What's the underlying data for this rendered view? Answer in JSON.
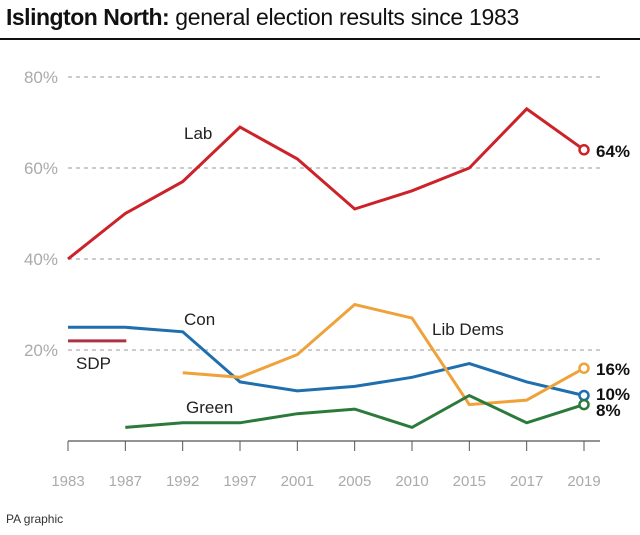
{
  "title": {
    "bold": "Islington North:",
    "rest": " general election results since 1983"
  },
  "source": "PA graphic",
  "chart_data": {
    "type": "line",
    "title": "Islington North: general election results since 1983",
    "x": [
      "1983",
      "1987",
      "1992",
      "1997",
      "2001",
      "2005",
      "2010",
      "2015",
      "2017",
      "2019"
    ],
    "ylim": [
      0,
      80
    ],
    "y_ticks": [
      "80%",
      "60%",
      "40%",
      "20%"
    ],
    "y_tick_values": [
      80,
      60,
      40,
      20
    ],
    "grid": true,
    "series": [
      {
        "name": "Lab",
        "color": "#cc2229",
        "values": [
          40,
          50,
          57,
          69,
          62,
          51,
          55,
          60,
          73,
          64
        ],
        "end_label": "64%"
      },
      {
        "name": "Con",
        "color": "#1f6faf",
        "values": [
          25,
          25,
          24,
          13,
          11,
          12,
          14,
          17,
          13,
          10
        ],
        "end_label": "10%"
      },
      {
        "name": "Lib Dems",
        "color": "#f0a23a",
        "values": [
          null,
          null,
          15,
          14,
          19,
          30,
          27,
          8,
          9,
          16
        ],
        "end_label": "16%"
      },
      {
        "name": "Green",
        "color": "#2b7a3b",
        "values": [
          null,
          3,
          4,
          4,
          6,
          7,
          3,
          10,
          4,
          8
        ],
        "end_label": "8%"
      },
      {
        "name": "SDP",
        "color": "#b03045",
        "values": [
          22,
          22,
          null,
          null,
          null,
          null,
          null,
          null,
          null,
          null
        ],
        "end_label": ""
      }
    ]
  },
  "colors": {
    "axis": "#555555",
    "grid": "#999999",
    "tick_text": "#aaaaaa"
  }
}
